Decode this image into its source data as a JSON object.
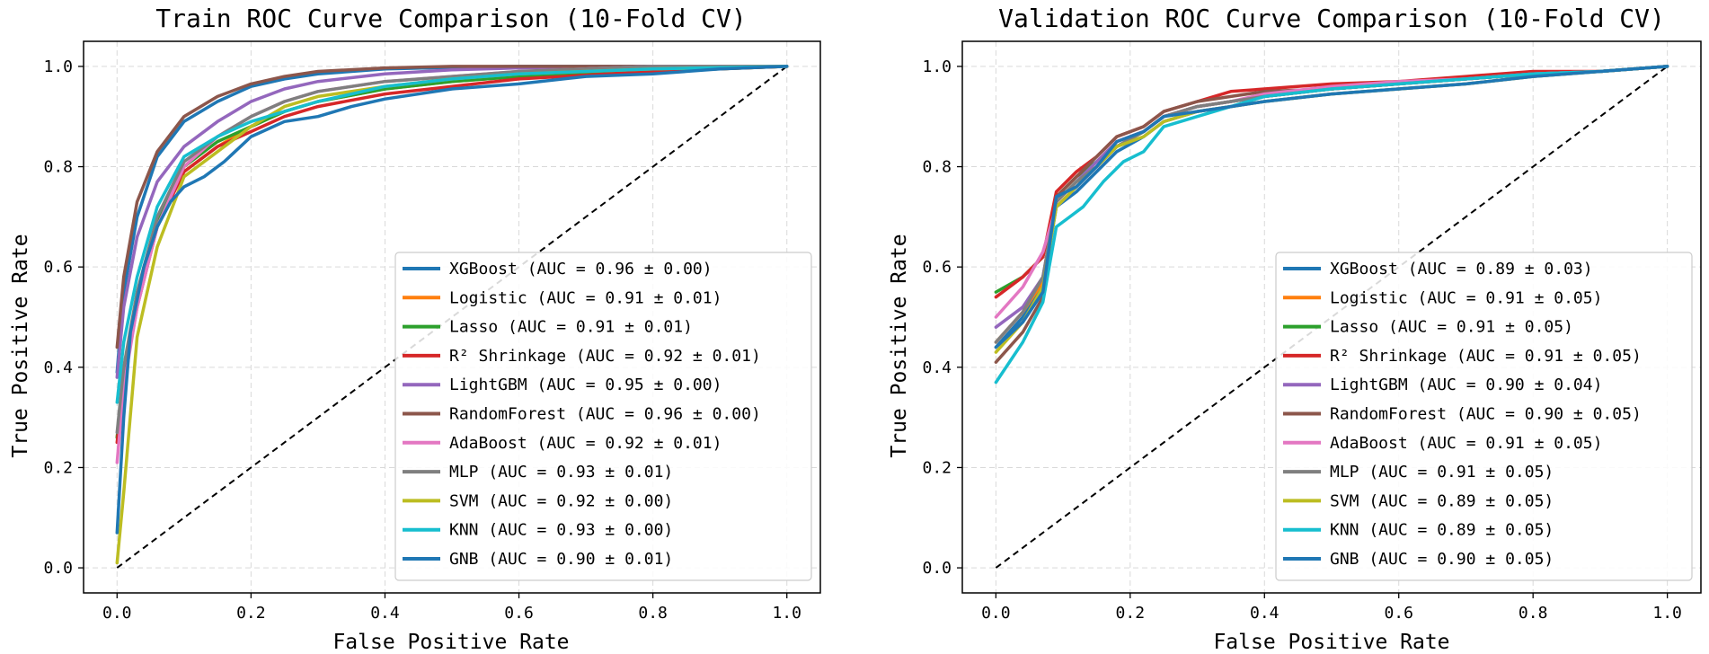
{
  "chart_data": [
    {
      "type": "line",
      "title": "Train ROC Curve Comparison (10-Fold CV)",
      "xlabel": "False Positive Rate",
      "ylabel": "True Positive Rate",
      "xlim": [
        -0.05,
        1.05
      ],
      "ylim": [
        -0.05,
        1.05
      ],
      "x_ticks": [
        "0.0",
        "0.2",
        "0.4",
        "0.6",
        "0.8",
        "1.0"
      ],
      "y_ticks": [
        "0.0",
        "0.2",
        "0.4",
        "0.6",
        "0.8",
        "1.0"
      ],
      "grid": true,
      "legend_position": "lower right",
      "diagonal": true,
      "series": [
        {
          "name": "XGBoost (AUC = 0.96 ± 0.00)",
          "color": "#1f77b4",
          "x": [
            0,
            0.01,
            0.03,
            0.06,
            0.1,
            0.15,
            0.2,
            0.25,
            0.3,
            0.4,
            0.5,
            0.6,
            0.8,
            1.0
          ],
          "y": [
            0.39,
            0.55,
            0.7,
            0.82,
            0.89,
            0.93,
            0.96,
            0.975,
            0.985,
            0.995,
            0.998,
            1.0,
            1.0,
            1.0
          ]
        },
        {
          "name": "Logistic (AUC = 0.91 ± 0.01)",
          "color": "#ff7f0e",
          "x": [
            0,
            0.01,
            0.03,
            0.06,
            0.1,
            0.15,
            0.2,
            0.25,
            0.3,
            0.4,
            0.5,
            0.6,
            0.8,
            1.0
          ],
          "y": [
            0.26,
            0.38,
            0.53,
            0.69,
            0.79,
            0.84,
            0.88,
            0.91,
            0.93,
            0.955,
            0.97,
            0.98,
            0.99,
            1.0
          ]
        },
        {
          "name": "Lasso (AUC = 0.91 ± 0.01)",
          "color": "#2ca02c",
          "x": [
            0,
            0.01,
            0.03,
            0.06,
            0.1,
            0.15,
            0.2,
            0.25,
            0.3,
            0.4,
            0.5,
            0.6,
            0.8,
            1.0
          ],
          "y": [
            0.26,
            0.38,
            0.53,
            0.69,
            0.8,
            0.85,
            0.88,
            0.91,
            0.93,
            0.955,
            0.97,
            0.98,
            0.99,
            1.0
          ]
        },
        {
          "name": "R² Shrinkage (AUC = 0.92 ± 0.01)",
          "color": "#d62728",
          "x": [
            0,
            0.01,
            0.03,
            0.06,
            0.1,
            0.15,
            0.2,
            0.25,
            0.3,
            0.4,
            0.5,
            0.6,
            0.8,
            1.0
          ],
          "y": [
            0.25,
            0.37,
            0.52,
            0.68,
            0.79,
            0.84,
            0.87,
            0.9,
            0.92,
            0.945,
            0.96,
            0.975,
            0.99,
            1.0
          ]
        },
        {
          "name": "LightGBM (AUC = 0.95 ± 0.00)",
          "color": "#9467bd",
          "x": [
            0,
            0.01,
            0.03,
            0.06,
            0.1,
            0.15,
            0.2,
            0.25,
            0.3,
            0.4,
            0.5,
            0.6,
            0.8,
            1.0
          ],
          "y": [
            0.38,
            0.52,
            0.66,
            0.77,
            0.84,
            0.89,
            0.93,
            0.955,
            0.97,
            0.985,
            0.993,
            0.997,
            1.0,
            1.0
          ]
        },
        {
          "name": "RandomForest (AUC = 0.96 ± 0.00)",
          "color": "#8c564b",
          "x": [
            0,
            0.01,
            0.03,
            0.06,
            0.1,
            0.15,
            0.2,
            0.25,
            0.3,
            0.4,
            0.5,
            0.6,
            0.8,
            1.0
          ],
          "y": [
            0.44,
            0.58,
            0.73,
            0.83,
            0.9,
            0.94,
            0.965,
            0.98,
            0.99,
            0.997,
            1.0,
            1.0,
            1.0,
            1.0
          ]
        },
        {
          "name": "AdaBoost (AUC = 0.92 ± 0.01)",
          "color": "#e377c2",
          "x": [
            0,
            0.01,
            0.03,
            0.06,
            0.1,
            0.15,
            0.2,
            0.25,
            0.3,
            0.4,
            0.5,
            0.6,
            0.8,
            1.0
          ],
          "y": [
            0.21,
            0.36,
            0.52,
            0.68,
            0.8,
            0.86,
            0.9,
            0.93,
            0.95,
            0.97,
            0.98,
            0.99,
            1.0,
            1.0
          ]
        },
        {
          "name": "MLP (AUC = 0.93 ± 0.01)",
          "color": "#7f7f7f",
          "x": [
            0,
            0.01,
            0.03,
            0.06,
            0.1,
            0.15,
            0.2,
            0.25,
            0.3,
            0.4,
            0.5,
            0.6,
            0.8,
            1.0
          ],
          "y": [
            0.27,
            0.4,
            0.55,
            0.7,
            0.81,
            0.86,
            0.9,
            0.93,
            0.95,
            0.97,
            0.98,
            0.99,
            1.0,
            1.0
          ]
        },
        {
          "name": "SVM (AUC = 0.92 ± 0.00)",
          "color": "#bcbd22",
          "x": [
            0,
            0.01,
            0.03,
            0.06,
            0.1,
            0.15,
            0.2,
            0.25,
            0.3,
            0.4,
            0.5,
            0.6,
            0.8,
            1.0
          ],
          "y": [
            0.01,
            0.15,
            0.46,
            0.64,
            0.78,
            0.83,
            0.88,
            0.92,
            0.94,
            0.96,
            0.975,
            0.985,
            0.995,
            1.0
          ]
        },
        {
          "name": "KNN (AUC = 0.93 ± 0.00)",
          "color": "#17becf",
          "x": [
            0,
            0.01,
            0.03,
            0.06,
            0.1,
            0.15,
            0.2,
            0.25,
            0.3,
            0.4,
            0.5,
            0.6,
            0.8,
            1.0
          ],
          "y": [
            0.33,
            0.45,
            0.58,
            0.72,
            0.82,
            0.86,
            0.89,
            0.91,
            0.93,
            0.96,
            0.975,
            0.985,
            0.995,
            1.0
          ]
        },
        {
          "name": "GNB (AUC = 0.90 ± 0.01)",
          "color": "#1f77b4",
          "x": [
            0,
            0.01,
            0.02,
            0.04,
            0.06,
            0.08,
            0.1,
            0.13,
            0.16,
            0.2,
            0.25,
            0.3,
            0.35,
            0.4,
            0.5,
            0.6,
            0.7,
            0.8,
            0.9,
            1.0
          ],
          "y": [
            0.07,
            0.3,
            0.47,
            0.6,
            0.68,
            0.73,
            0.76,
            0.78,
            0.81,
            0.86,
            0.89,
            0.9,
            0.92,
            0.935,
            0.955,
            0.965,
            0.98,
            0.985,
            0.995,
            1.0
          ]
        }
      ]
    },
    {
      "type": "line",
      "title": "Validation ROC Curve Comparison (10-Fold CV)",
      "xlabel": "False Positive Rate",
      "ylabel": "True Positive Rate",
      "xlim": [
        -0.05,
        1.05
      ],
      "ylim": [
        -0.05,
        1.05
      ],
      "x_ticks": [
        "0.0",
        "0.2",
        "0.4",
        "0.6",
        "0.8",
        "1.0"
      ],
      "y_ticks": [
        "0.0",
        "0.2",
        "0.4",
        "0.6",
        "0.8",
        "1.0"
      ],
      "grid": true,
      "legend_position": "lower right",
      "diagonal": true,
      "series": [
        {
          "name": "XGBoost (AUC = 0.89 ± 0.03)",
          "color": "#1f77b4",
          "x": [
            0,
            0.04,
            0.07,
            0.09,
            0.12,
            0.15,
            0.18,
            0.22,
            0.25,
            0.3,
            0.35,
            0.4,
            0.5,
            0.6,
            0.7,
            0.8,
            0.9,
            1.0
          ],
          "y": [
            0.44,
            0.5,
            0.56,
            0.72,
            0.75,
            0.79,
            0.83,
            0.86,
            0.89,
            0.91,
            0.92,
            0.93,
            0.945,
            0.955,
            0.965,
            0.98,
            0.99,
            1.0
          ]
        },
        {
          "name": "Logistic (AUC = 0.91 ± 0.05)",
          "color": "#ff7f0e",
          "x": [
            0,
            0.04,
            0.07,
            0.09,
            0.12,
            0.15,
            0.18,
            0.22,
            0.25,
            0.3,
            0.35,
            0.4,
            0.5,
            0.6,
            0.7,
            0.8,
            0.9,
            1.0
          ],
          "y": [
            0.45,
            0.51,
            0.57,
            0.73,
            0.77,
            0.8,
            0.84,
            0.87,
            0.9,
            0.92,
            0.93,
            0.94,
            0.955,
            0.965,
            0.975,
            0.985,
            0.99,
            1.0
          ]
        },
        {
          "name": "Lasso (AUC = 0.91 ± 0.05)",
          "color": "#2ca02c",
          "x": [
            0,
            0.04,
            0.07,
            0.09,
            0.12,
            0.15,
            0.18,
            0.22,
            0.25,
            0.3,
            0.35,
            0.4,
            0.5,
            0.6,
            0.7,
            0.8,
            0.9,
            1.0
          ],
          "y": [
            0.55,
            0.58,
            0.62,
            0.74,
            0.78,
            0.81,
            0.84,
            0.87,
            0.9,
            0.92,
            0.93,
            0.94,
            0.955,
            0.965,
            0.975,
            0.985,
            0.99,
            1.0
          ]
        },
        {
          "name": "R² Shrinkage (AUC = 0.91 ± 0.05)",
          "color": "#d62728",
          "x": [
            0,
            0.04,
            0.07,
            0.09,
            0.12,
            0.15,
            0.18,
            0.22,
            0.25,
            0.3,
            0.35,
            0.4,
            0.5,
            0.6,
            0.7,
            0.8,
            0.9,
            1.0
          ],
          "y": [
            0.54,
            0.58,
            0.62,
            0.75,
            0.79,
            0.82,
            0.86,
            0.88,
            0.91,
            0.93,
            0.95,
            0.955,
            0.965,
            0.97,
            0.98,
            0.99,
            0.99,
            1.0
          ]
        },
        {
          "name": "LightGBM (AUC = 0.90 ± 0.04)",
          "color": "#9467bd",
          "x": [
            0,
            0.04,
            0.07,
            0.09,
            0.12,
            0.15,
            0.18,
            0.22,
            0.25,
            0.3,
            0.35,
            0.4,
            0.5,
            0.6,
            0.7,
            0.8,
            0.9,
            1.0
          ],
          "y": [
            0.48,
            0.52,
            0.58,
            0.73,
            0.77,
            0.81,
            0.85,
            0.87,
            0.9,
            0.92,
            0.93,
            0.94,
            0.955,
            0.965,
            0.975,
            0.985,
            0.99,
            1.0
          ]
        },
        {
          "name": "RandomForest (AUC = 0.90 ± 0.05)",
          "color": "#8c564b",
          "x": [
            0,
            0.04,
            0.07,
            0.09,
            0.12,
            0.15,
            0.18,
            0.22,
            0.25,
            0.3,
            0.35,
            0.4,
            0.5,
            0.6,
            0.7,
            0.8,
            0.9,
            1.0
          ],
          "y": [
            0.41,
            0.47,
            0.54,
            0.74,
            0.78,
            0.82,
            0.86,
            0.88,
            0.91,
            0.93,
            0.94,
            0.95,
            0.955,
            0.965,
            0.975,
            0.985,
            0.99,
            1.0
          ]
        },
        {
          "name": "AdaBoost (AUC = 0.91 ± 0.05)",
          "color": "#e377c2",
          "x": [
            0,
            0.04,
            0.07,
            0.09,
            0.12,
            0.15,
            0.18,
            0.22,
            0.25,
            0.3,
            0.35,
            0.4,
            0.5,
            0.6,
            0.7,
            0.8,
            0.9,
            1.0
          ],
          "y": [
            0.5,
            0.56,
            0.63,
            0.72,
            0.76,
            0.8,
            0.85,
            0.87,
            0.9,
            0.92,
            0.93,
            0.945,
            0.96,
            0.97,
            0.975,
            0.985,
            0.99,
            1.0
          ]
        },
        {
          "name": "MLP (AUC = 0.91 ± 0.05)",
          "color": "#7f7f7f",
          "x": [
            0,
            0.04,
            0.07,
            0.09,
            0.12,
            0.15,
            0.18,
            0.22,
            0.25,
            0.3,
            0.35,
            0.4,
            0.5,
            0.6,
            0.7,
            0.8,
            0.9,
            1.0
          ],
          "y": [
            0.45,
            0.51,
            0.58,
            0.73,
            0.77,
            0.8,
            0.84,
            0.87,
            0.9,
            0.92,
            0.93,
            0.94,
            0.955,
            0.965,
            0.975,
            0.985,
            0.99,
            1.0
          ]
        },
        {
          "name": "SVM (AUC = 0.89 ± 0.05)",
          "color": "#bcbd22",
          "x": [
            0,
            0.04,
            0.07,
            0.09,
            0.12,
            0.15,
            0.18,
            0.22,
            0.25,
            0.3,
            0.35,
            0.4,
            0.5,
            0.6,
            0.7,
            0.8,
            0.9,
            1.0
          ],
          "y": [
            0.43,
            0.49,
            0.56,
            0.72,
            0.76,
            0.8,
            0.84,
            0.86,
            0.89,
            0.91,
            0.92,
            0.93,
            0.945,
            0.955,
            0.965,
            0.98,
            0.99,
            1.0
          ]
        },
        {
          "name": "KNN (AUC = 0.89 ± 0.05)",
          "color": "#17becf",
          "x": [
            0,
            0.04,
            0.07,
            0.09,
            0.11,
            0.13,
            0.16,
            0.19,
            0.22,
            0.25,
            0.3,
            0.35,
            0.4,
            0.5,
            0.6,
            0.7,
            0.8,
            0.9,
            1.0
          ],
          "y": [
            0.37,
            0.45,
            0.53,
            0.68,
            0.7,
            0.72,
            0.77,
            0.81,
            0.83,
            0.88,
            0.9,
            0.92,
            0.94,
            0.955,
            0.965,
            0.975,
            0.985,
            0.99,
            1.0
          ]
        },
        {
          "name": "GNB (AUC = 0.90 ± 0.05)",
          "color": "#1f77b4",
          "x": [
            0,
            0.04,
            0.07,
            0.09,
            0.12,
            0.15,
            0.18,
            0.22,
            0.25,
            0.3,
            0.35,
            0.4,
            0.5,
            0.6,
            0.7,
            0.8,
            0.9,
            1.0
          ],
          "y": [
            0.44,
            0.49,
            0.55,
            0.74,
            0.76,
            0.8,
            0.85,
            0.87,
            0.9,
            0.91,
            0.92,
            0.93,
            0.945,
            0.955,
            0.965,
            0.98,
            0.99,
            1.0
          ]
        }
      ]
    }
  ]
}
